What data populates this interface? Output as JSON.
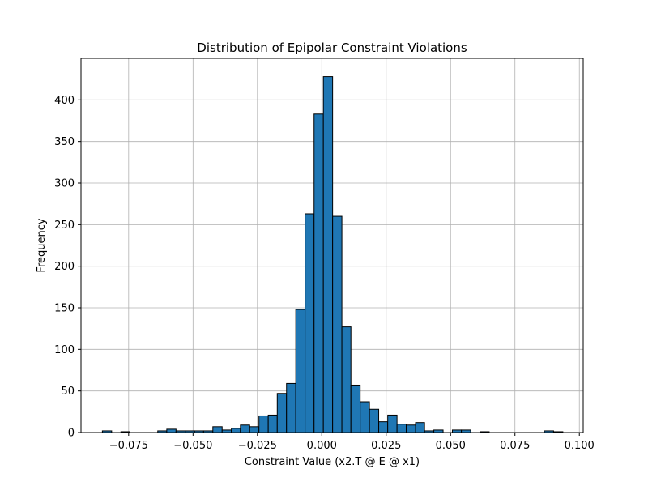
{
  "chart_data": {
    "type": "bar",
    "title": "Distribution of Epipolar Constraint Violations",
    "xlabel": "Constraint Value (x2.T @ E @ x1)",
    "ylabel": "Frequency",
    "xlim": [
      -0.0935,
      0.1015
    ],
    "ylim": [
      0,
      450
    ],
    "grid": true,
    "bar_color": "#1f77b4",
    "edge_color": "#000000",
    "xticks": [
      -0.075,
      -0.05,
      -0.025,
      0.0,
      0.025,
      0.05,
      0.075,
      0.1
    ],
    "xtick_labels": [
      "−0.075",
      "−0.050",
      "−0.025",
      "0.000",
      "0.025",
      "0.050",
      "0.075",
      "0.100"
    ],
    "yticks": [
      0,
      50,
      100,
      150,
      200,
      250,
      300,
      350,
      400
    ],
    "yticks_labels": [
      "0",
      "50",
      "100",
      "150",
      "200",
      "250",
      "300",
      "350",
      "400"
    ],
    "bins": [
      {
        "x0": -0.0852,
        "x1": -0.0816,
        "value": 2
      },
      {
        "x0": -0.0816,
        "x1": -0.078,
        "value": 0
      },
      {
        "x0": -0.078,
        "x1": -0.0745,
        "value": 1
      },
      {
        "x0": -0.0745,
        "x1": -0.0709,
        "value": 0
      },
      {
        "x0": -0.0709,
        "x1": -0.0673,
        "value": 0
      },
      {
        "x0": -0.0673,
        "x1": -0.0637,
        "value": 0
      },
      {
        "x0": -0.0637,
        "x1": -0.0602,
        "value": 2
      },
      {
        "x0": -0.0602,
        "x1": -0.0566,
        "value": 4
      },
      {
        "x0": -0.0566,
        "x1": -0.053,
        "value": 2
      },
      {
        "x0": -0.053,
        "x1": -0.0494,
        "value": 2
      },
      {
        "x0": -0.0494,
        "x1": -0.0459,
        "value": 2
      },
      {
        "x0": -0.0459,
        "x1": -0.0423,
        "value": 2
      },
      {
        "x0": -0.0423,
        "x1": -0.0387,
        "value": 7
      },
      {
        "x0": -0.0387,
        "x1": -0.0351,
        "value": 3
      },
      {
        "x0": -0.0351,
        "x1": -0.0316,
        "value": 5
      },
      {
        "x0": -0.0316,
        "x1": -0.028,
        "value": 9
      },
      {
        "x0": -0.028,
        "x1": -0.0244,
        "value": 7
      },
      {
        "x0": -0.0244,
        "x1": -0.0208,
        "value": 20
      },
      {
        "x0": -0.0208,
        "x1": -0.0173,
        "value": 21
      },
      {
        "x0": -0.0173,
        "x1": -0.0137,
        "value": 47
      },
      {
        "x0": -0.0137,
        "x1": -0.0101,
        "value": 59
      },
      {
        "x0": -0.0101,
        "x1": -0.0065,
        "value": 148
      },
      {
        "x0": -0.0065,
        "x1": -0.003,
        "value": 263
      },
      {
        "x0": -0.003,
        "x1": 0.0006,
        "value": 383
      },
      {
        "x0": 0.0006,
        "x1": 0.0042,
        "value": 428
      },
      {
        "x0": 0.0042,
        "x1": 0.0078,
        "value": 260
      },
      {
        "x0": 0.0078,
        "x1": 0.0113,
        "value": 127
      },
      {
        "x0": 0.0113,
        "x1": 0.0149,
        "value": 57
      },
      {
        "x0": 0.0149,
        "x1": 0.0185,
        "value": 37
      },
      {
        "x0": 0.0185,
        "x1": 0.0221,
        "value": 28
      },
      {
        "x0": 0.0221,
        "x1": 0.0256,
        "value": 13
      },
      {
        "x0": 0.0256,
        "x1": 0.0292,
        "value": 21
      },
      {
        "x0": 0.0292,
        "x1": 0.0328,
        "value": 10
      },
      {
        "x0": 0.0328,
        "x1": 0.0364,
        "value": 9
      },
      {
        "x0": 0.0364,
        "x1": 0.0399,
        "value": 12
      },
      {
        "x0": 0.0399,
        "x1": 0.0435,
        "value": 2
      },
      {
        "x0": 0.0435,
        "x1": 0.0471,
        "value": 3
      },
      {
        "x0": 0.0471,
        "x1": 0.0507,
        "value": 0
      },
      {
        "x0": 0.0507,
        "x1": 0.0542,
        "value": 3
      },
      {
        "x0": 0.0542,
        "x1": 0.0578,
        "value": 3
      },
      {
        "x0": 0.0578,
        "x1": 0.0614,
        "value": 0
      },
      {
        "x0": 0.0614,
        "x1": 0.065,
        "value": 1
      },
      {
        "x0": 0.065,
        "x1": 0.0685,
        "value": 0
      },
      {
        "x0": 0.0685,
        "x1": 0.0721,
        "value": 0
      },
      {
        "x0": 0.0721,
        "x1": 0.0757,
        "value": 0
      },
      {
        "x0": 0.0757,
        "x1": 0.0793,
        "value": 0
      },
      {
        "x0": 0.0793,
        "x1": 0.0828,
        "value": 0
      },
      {
        "x0": 0.0828,
        "x1": 0.0864,
        "value": 0
      },
      {
        "x0": 0.0864,
        "x1": 0.09,
        "value": 2
      },
      {
        "x0": 0.09,
        "x1": 0.0936,
        "value": 1
      }
    ]
  }
}
